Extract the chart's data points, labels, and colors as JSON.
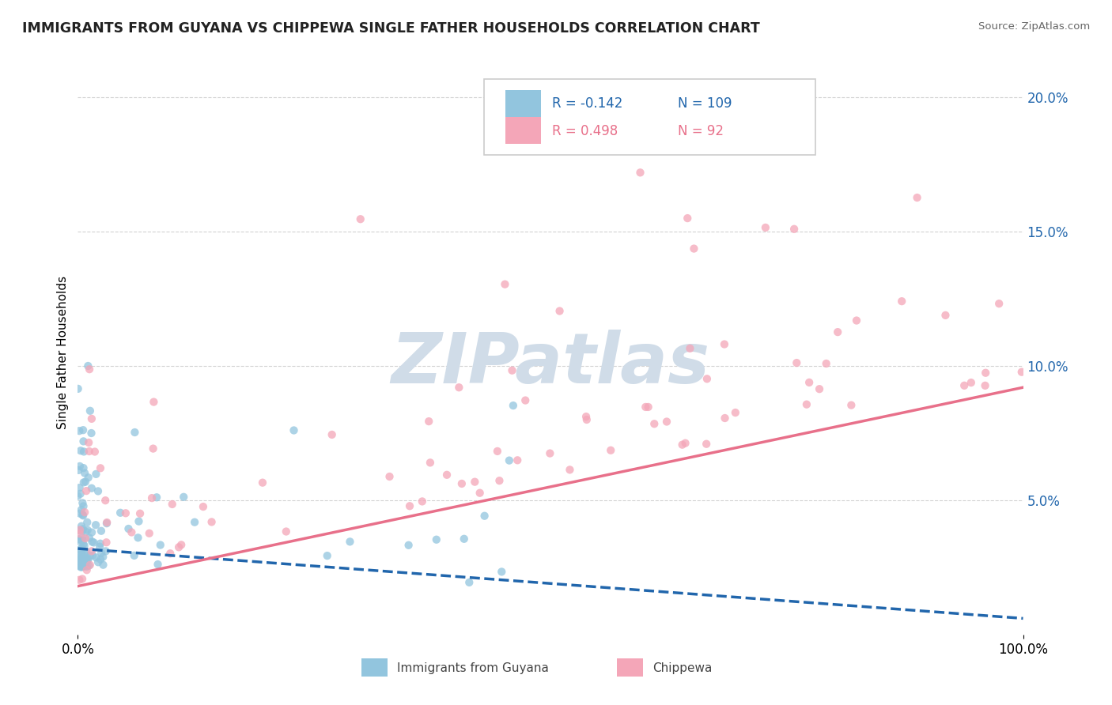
{
  "title": "IMMIGRANTS FROM GUYANA VS CHIPPEWA SINGLE FATHER HOUSEHOLDS CORRELATION CHART",
  "source": "Source: ZipAtlas.com",
  "ylabel": "Single Father Households",
  "legend_label1": "Immigrants from Guyana",
  "legend_label2": "Chippewa",
  "r1": "-0.142",
  "n1": "109",
  "r2": "0.498",
  "n2": "92",
  "color_blue": "#92c5de",
  "color_pink": "#f4a6b8",
  "color_blue_line": "#2166ac",
  "color_pink_line": "#e8708a",
  "color_blue_text": "#2166ac",
  "color_pink_text": "#e8708a",
  "watermark_color": "#d0dce8",
  "watermark_text": "ZIPatlas",
  "xlim": [
    0.0,
    1.0
  ],
  "ylim": [
    0.0,
    0.21
  ],
  "yticks": [
    0.05,
    0.1,
    0.15,
    0.2
  ],
  "ytick_labels": [
    "5.0%",
    "10.0%",
    "15.0%",
    "20.0%"
  ],
  "blue_line_x": [
    0.0,
    1.0
  ],
  "blue_line_y": [
    0.032,
    0.006
  ],
  "pink_line_x": [
    0.0,
    1.0
  ],
  "pink_line_y": [
    0.018,
    0.092
  ]
}
